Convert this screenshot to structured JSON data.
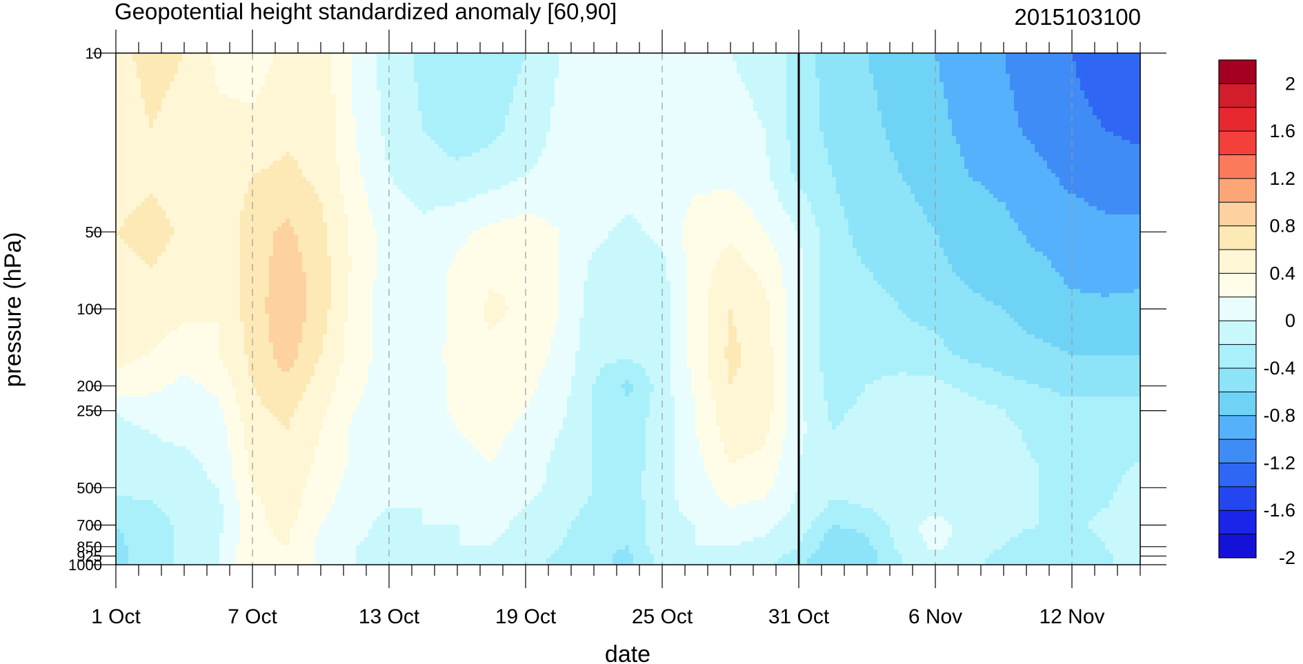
{
  "chart_data": {
    "type": "heatmap",
    "title": "Geopotential height standardized anomaly [60,90]",
    "run_label": "2015103100",
    "xlabel": "date",
    "ylabel": "pressure (hPa)",
    "x_ticks": [
      {
        "day": 0,
        "label": "1 Oct"
      },
      {
        "day": 6,
        "label": "7 Oct"
      },
      {
        "day": 12,
        "label": "13 Oct"
      },
      {
        "day": 18,
        "label": "19 Oct"
      },
      {
        "day": 24,
        "label": "25 Oct"
      },
      {
        "day": 30,
        "label": "31 Oct"
      },
      {
        "day": 36,
        "label": "6 Nov"
      },
      {
        "day": 42,
        "label": "12 Nov"
      }
    ],
    "x_range_days": [
      0,
      45
    ],
    "forecast_start_day": 30,
    "y_ticks": [
      {
        "value": 10,
        "label": "10"
      },
      {
        "value": 50,
        "label": "50"
      },
      {
        "value": 100,
        "label": "100"
      },
      {
        "value": 200,
        "label": "200"
      },
      {
        "value": 250,
        "label": "250"
      },
      {
        "value": 500,
        "label": "500"
      },
      {
        "value": 700,
        "label": "700"
      },
      {
        "value": 850,
        "label": "850"
      },
      {
        "value": 925,
        "label": "925"
      },
      {
        "value": 1000,
        "label": "1000"
      }
    ],
    "y_range_hpa": [
      1000,
      10
    ],
    "y_scale": "log, reversed",
    "colorbar": {
      "labels": [
        "2",
        "1.6",
        "1.2",
        "0.8",
        "0.4",
        "0",
        "-0.4",
        "-0.8",
        "-1.2",
        "-1.6",
        "-2"
      ],
      "colors": [
        "#a50021",
        "#d11d2c",
        "#e8282f",
        "#f43f3a",
        "#fb7a5c",
        "#fca677",
        "#fdd1a0",
        "#fde9b6",
        "#fef6d4",
        "#fffde8",
        "#e9fdfe",
        "#c9f8fc",
        "#aaf0fb",
        "#8de4f8",
        "#6fd3f6",
        "#55b1fb",
        "#3f8cf6",
        "#2f67f4",
        "#2446f0",
        "#1b25ea",
        "#1412d8"
      ]
    },
    "field": {
      "time_days": [
        0,
        1.5,
        3,
        4.5,
        6,
        7.5,
        9,
        10.5,
        12,
        13.5,
        15,
        16.5,
        18,
        19.5,
        21,
        22.5,
        24,
        25.5,
        27,
        28.5,
        30,
        31.5,
        33,
        34.5,
        36,
        37.5,
        39,
        40.5,
        42,
        43.5,
        45
      ],
      "levels_hpa": [
        10,
        20,
        30,
        50,
        70,
        100,
        150,
        200,
        250,
        300,
        400,
        500,
        600,
        700,
        850,
        925,
        1000
      ],
      "values": [
        [
          0.55,
          0.65,
          0.6,
          0.35,
          0.3,
          0.45,
          0.5,
          0.15,
          -0.1,
          -0.25,
          -0.4,
          -0.35,
          -0.2,
          0.0,
          0.05,
          0.1,
          0.1,
          0.05,
          0.0,
          -0.05,
          -0.3,
          -0.5,
          -0.6,
          -0.7,
          -0.8,
          -0.9,
          -1.0,
          -1.1,
          -1.2,
          -1.3,
          -1.4
        ],
        [
          0.5,
          0.6,
          0.55,
          0.45,
          0.45,
          0.55,
          0.55,
          0.2,
          -0.05,
          -0.2,
          -0.3,
          -0.25,
          -0.1,
          0.05,
          0.15,
          0.1,
          0.1,
          0.1,
          0.05,
          0.0,
          -0.3,
          -0.45,
          -0.55,
          -0.65,
          -0.75,
          -0.85,
          -0.95,
          -1.05,
          -1.15,
          -1.2,
          -1.25
        ],
        [
          0.45,
          0.55,
          0.5,
          0.45,
          0.6,
          0.65,
          0.55,
          0.25,
          0.0,
          -0.1,
          -0.15,
          -0.1,
          0.0,
          0.05,
          0.15,
          0.1,
          0.1,
          0.15,
          0.15,
          0.05,
          -0.25,
          -0.4,
          -0.5,
          -0.6,
          -0.7,
          -0.8,
          -0.85,
          -0.95,
          -1.05,
          -1.1,
          -1.1
        ],
        [
          0.6,
          0.7,
          0.55,
          0.45,
          0.7,
          0.85,
          0.65,
          0.35,
          0.1,
          0.05,
          0.15,
          0.25,
          0.3,
          0.2,
          0.05,
          -0.05,
          0.05,
          0.3,
          0.35,
          0.2,
          0.0,
          -0.35,
          -0.45,
          -0.5,
          -0.6,
          -0.7,
          -0.75,
          -0.85,
          -0.9,
          -0.95,
          -0.95
        ],
        [
          0.5,
          0.6,
          0.5,
          0.4,
          0.7,
          0.9,
          0.7,
          0.35,
          0.1,
          0.05,
          0.25,
          0.35,
          0.35,
          0.2,
          -0.05,
          -0.1,
          -0.05,
          0.3,
          0.5,
          0.35,
          0.05,
          -0.35,
          -0.4,
          -0.45,
          -0.55,
          -0.65,
          -0.7,
          -0.75,
          -0.85,
          -0.9,
          -0.85
        ],
        [
          0.5,
          0.5,
          0.45,
          0.4,
          0.7,
          0.95,
          0.7,
          0.3,
          0.1,
          0.05,
          0.25,
          0.45,
          0.35,
          0.2,
          -0.1,
          -0.15,
          -0.1,
          0.3,
          0.6,
          0.45,
          0.05,
          -0.35,
          -0.35,
          -0.4,
          -0.45,
          -0.55,
          -0.6,
          -0.7,
          -0.75,
          -0.75,
          -0.75
        ],
        [
          0.45,
          0.4,
          0.3,
          0.4,
          0.65,
          0.9,
          0.6,
          0.3,
          0.1,
          0.05,
          0.3,
          0.35,
          0.3,
          0.15,
          -0.15,
          -0.15,
          -0.1,
          0.3,
          0.65,
          0.5,
          0.05,
          -0.35,
          -0.3,
          -0.35,
          -0.35,
          -0.45,
          -0.5,
          -0.55,
          -0.6,
          -0.6,
          -0.6
        ],
        [
          0.35,
          0.25,
          0.15,
          0.25,
          0.6,
          0.75,
          0.5,
          0.25,
          0.1,
          0.05,
          0.25,
          0.3,
          0.25,
          0.1,
          -0.2,
          -0.45,
          -0.1,
          0.25,
          0.6,
          0.5,
          0.05,
          -0.3,
          -0.2,
          -0.1,
          -0.15,
          -0.25,
          -0.35,
          -0.4,
          -0.45,
          -0.45,
          -0.45
        ],
        [
          0.0,
          0.1,
          0.1,
          0.15,
          0.55,
          0.65,
          0.45,
          0.2,
          0.05,
          0.05,
          0.25,
          0.3,
          0.2,
          0.05,
          -0.2,
          -0.35,
          -0.1,
          0.2,
          0.55,
          0.5,
          0.05,
          -0.25,
          -0.15,
          -0.05,
          -0.05,
          -0.1,
          -0.2,
          -0.3,
          -0.35,
          -0.35,
          -0.35
        ],
        [
          -0.05,
          0.0,
          0.05,
          0.1,
          0.5,
          0.6,
          0.4,
          0.15,
          0.05,
          0.05,
          0.2,
          0.25,
          0.15,
          0.0,
          -0.2,
          -0.3,
          -0.1,
          0.2,
          0.5,
          0.45,
          0.05,
          -0.2,
          -0.1,
          -0.05,
          -0.05,
          -0.1,
          -0.15,
          -0.25,
          -0.3,
          -0.3,
          -0.3
        ],
        [
          -0.1,
          -0.05,
          -0.05,
          0.05,
          0.45,
          0.55,
          0.35,
          0.15,
          0.05,
          0.0,
          0.15,
          0.2,
          0.1,
          -0.05,
          -0.2,
          -0.3,
          -0.1,
          0.15,
          0.4,
          0.35,
          0.0,
          -0.15,
          -0.1,
          -0.05,
          -0.05,
          -0.1,
          -0.15,
          -0.2,
          -0.25,
          -0.25,
          -0.2
        ],
        [
          -0.15,
          -0.1,
          -0.05,
          0.0,
          0.4,
          0.5,
          0.3,
          0.1,
          0.05,
          0.0,
          0.1,
          0.15,
          0.05,
          -0.05,
          -0.2,
          -0.3,
          -0.05,
          0.1,
          0.3,
          0.25,
          0.0,
          -0.15,
          -0.1,
          -0.05,
          -0.1,
          -0.1,
          -0.15,
          -0.2,
          -0.25,
          -0.25,
          -0.1
        ],
        [
          -0.3,
          -0.25,
          -0.1,
          -0.05,
          0.35,
          0.5,
          0.25,
          0.1,
          0.0,
          0.0,
          0.05,
          0.1,
          0.0,
          -0.1,
          -0.25,
          -0.35,
          -0.05,
          0.05,
          0.2,
          0.15,
          -0.05,
          -0.25,
          -0.2,
          -0.1,
          -0.1,
          -0.1,
          -0.15,
          -0.2,
          -0.25,
          -0.2,
          -0.05
        ],
        [
          -0.4,
          -0.3,
          -0.15,
          -0.05,
          0.35,
          0.45,
          0.2,
          0.05,
          -0.05,
          0.0,
          0.0,
          0.05,
          -0.05,
          -0.15,
          -0.3,
          -0.4,
          -0.05,
          0.0,
          0.1,
          0.05,
          -0.1,
          -0.4,
          -0.35,
          -0.1,
          0.1,
          -0.1,
          -0.15,
          -0.2,
          -0.25,
          -0.15,
          -0.05
        ],
        [
          -0.45,
          -0.3,
          -0.15,
          0.0,
          0.35,
          0.4,
          0.15,
          0.0,
          -0.05,
          -0.05,
          0.0,
          0.0,
          -0.1,
          -0.2,
          -0.35,
          -0.4,
          -0.05,
          0.0,
          0.0,
          -0.05,
          -0.2,
          -0.55,
          -0.45,
          -0.15,
          0.05,
          -0.1,
          -0.2,
          -0.3,
          -0.3,
          -0.2,
          -0.05
        ],
        [
          -0.45,
          -0.3,
          -0.15,
          0.0,
          0.35,
          0.4,
          0.15,
          0.0,
          -0.05,
          -0.05,
          0.0,
          0.0,
          -0.1,
          -0.25,
          -0.35,
          -0.45,
          -0.1,
          -0.05,
          -0.05,
          -0.1,
          -0.3,
          -0.6,
          -0.5,
          -0.2,
          -0.05,
          -0.15,
          -0.25,
          -0.35,
          -0.35,
          -0.25,
          -0.05
        ],
        [
          -0.45,
          -0.3,
          -0.15,
          0.0,
          0.35,
          0.4,
          0.15,
          0.0,
          -0.05,
          -0.05,
          0.0,
          0.0,
          -0.1,
          -0.25,
          -0.35,
          -0.45,
          -0.1,
          -0.05,
          -0.05,
          -0.15,
          -0.35,
          -0.6,
          -0.5,
          -0.2,
          -0.05,
          -0.15,
          -0.25,
          -0.35,
          -0.35,
          -0.25,
          -0.05
        ]
      ]
    }
  }
}
